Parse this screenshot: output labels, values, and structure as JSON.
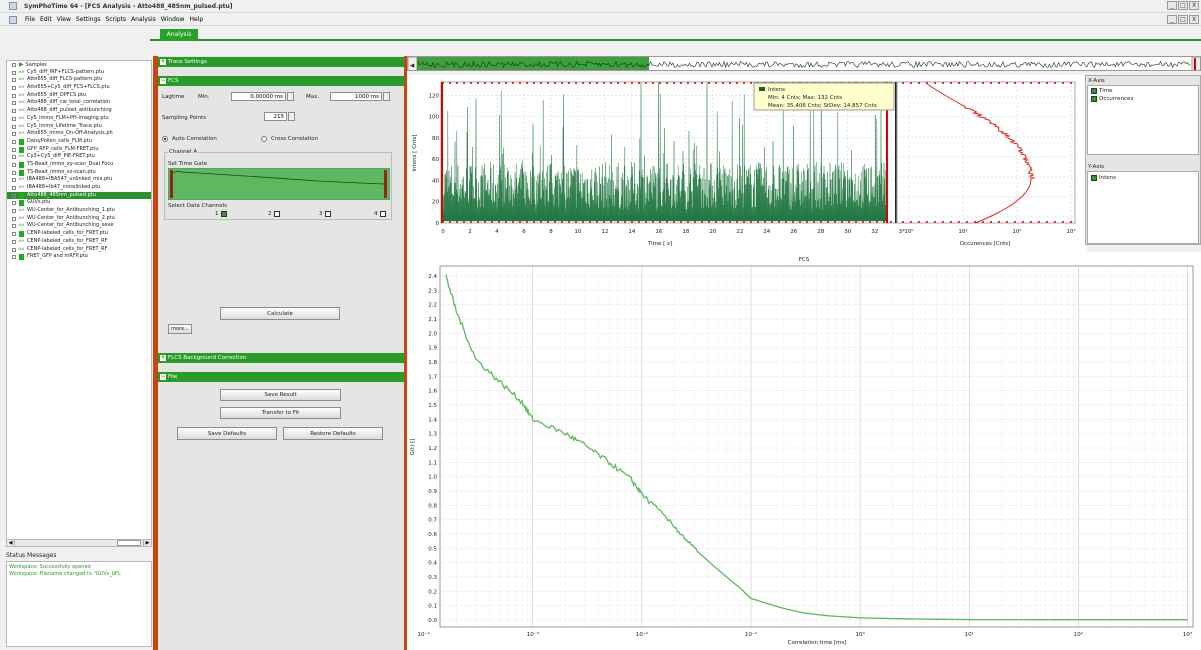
{
  "window": {
    "title": "SymPhoTime 64 - [FCS Analysis - Atto488_485nm_pulsed.ptu]",
    "buttons": [
      "_",
      "□",
      "X"
    ]
  },
  "menu": [
    "File",
    "Edit",
    "View",
    "Settings",
    "Scripts",
    "Analysis",
    "Window",
    "Help"
  ],
  "tab": "Analysis",
  "tree": {
    "root": "Samples",
    "items": [
      {
        "label": "Cy5_diff_IRF+FLCS-pattern.ptu",
        "kind": "chart"
      },
      {
        "label": "Atto655_diff_FLCS-pattern.ptu",
        "kind": "chart"
      },
      {
        "label": "Atto655+Cy5_diff_FCS+FLCS.ptu",
        "kind": "chart"
      },
      {
        "label": "Atto655_diff_DPFCS.ptu",
        "kind": "chart"
      },
      {
        "label": "Atto488_diff_cw_total_correlation",
        "kind": "chart"
      },
      {
        "label": "Atto488_diff_pulsed_antibunching",
        "kind": "chart"
      },
      {
        "label": "Cy5_immo_FLM+PH-imaging.ptu",
        "kind": "chart"
      },
      {
        "label": "Cy5_immo_Lifetime_Trace.ptu",
        "kind": "chart"
      },
      {
        "label": "Atto655_immo_On-Off-Analysis.ph",
        "kind": "chart"
      },
      {
        "label": "DaisyPollen_cells_FLM.ptu",
        "kind": "box"
      },
      {
        "label": "GFP_RFP_cells_FLM-FRET.ptu",
        "kind": "box"
      },
      {
        "label": "Cy3+Cy5_diff_PIE-FRET.ptu",
        "kind": "chart"
      },
      {
        "label": "TS-Bead_immo_xy-scan_Dual Focu",
        "kind": "box"
      },
      {
        "label": "TS-Bead_immo_xz-scan.ptu",
        "kind": "box"
      },
      {
        "label": "IBA488+IBA547_unlinked_mix.ptu",
        "kind": "chart"
      },
      {
        "label": "IBA488+Ib47_crosslinked.ptu",
        "kind": "chart"
      },
      {
        "label": "Atto488_485nm_pulsed.ptu",
        "kind": "box",
        "selected": true
      },
      {
        "label": "GUVs.ptu",
        "kind": "box"
      },
      {
        "label": "WU-Center_for_Antibunching_1.ptu",
        "kind": "chart"
      },
      {
        "label": "WU-Center_for_Antibunching_2.ptu",
        "kind": "chart"
      },
      {
        "label": "WU-Center_for_Antibunching_seve",
        "kind": "chart"
      },
      {
        "label": "CENP-labeled_cells_for_FRET.ptu",
        "kind": "box"
      },
      {
        "label": "CENP-labeled_cells_for_FRET_RF",
        "kind": "chart"
      },
      {
        "label": "CENP-labeled_cells_for_FRET_RF",
        "kind": "chart"
      },
      {
        "label": "FRET_GFP and mRFP.ptu",
        "kind": "box"
      }
    ]
  },
  "status": {
    "title": "Status Messages",
    "lines": [
      "Workspace: Successfully opened",
      "Workspace: Filename changed to \"GUVs_bFL"
    ]
  },
  "panel": {
    "trace_settings": "Trace Settings",
    "fcs": "FCS",
    "lagtime_label": "Lagtime",
    "min_label": "Min.",
    "min_value": "0,00000 ms",
    "max_label": "Max.",
    "max_value": "1000 ms",
    "sampling_label": "Sampling Points",
    "sampling_value": "215",
    "auto_corr": "Auto Correlation",
    "cross_corr": "Cross Correlation",
    "channel": "Channel A",
    "time_gate": "Set Time Gate",
    "select_channels": "Select Data Channels",
    "ch_labels": [
      "1",
      "2",
      "3",
      "4"
    ],
    "calculate": "Calculate",
    "more": "more...",
    "flcs_bg": "FLCS Background Correction",
    "file": "File",
    "save_result": "Save Result",
    "transfer": "Transfer to Fit",
    "save_defaults": "Save Defaults",
    "restore_defaults": "Restore Defaults"
  },
  "axes_panel": {
    "x_title": "X-Axis",
    "x_items": [
      "Time",
      "Occurrences"
    ],
    "y_title": "Y-Axis",
    "y_items": [
      "Intens"
    ]
  },
  "tooltip": {
    "title": "Intens",
    "line1": "Min: 4 Cnts; Max: 132 Cnts",
    "line2": "Mean: 35,406 Cnts; StDev: 14,857 Cnts"
  },
  "chart_data": [
    {
      "type": "area",
      "xlabel": "Time [ s]",
      "ylabel": "Intens [ Cnts]",
      "xticks": [
        "0",
        "2",
        "4",
        "6",
        "8",
        "10",
        "12",
        "14",
        "16",
        "18",
        "20",
        "22",
        "24",
        "26",
        "28",
        "30",
        "32",
        "3*"
      ],
      "yticks": [
        "0",
        "20",
        "40",
        "60",
        "80",
        "100",
        "120"
      ],
      "xlim": [
        0,
        33.5
      ],
      "ylim": [
        0,
        132
      ],
      "series": [
        {
          "values_summary": {
            "min": 4,
            "max": 132,
            "mean": 35.406,
            "stdev": 14.857
          }
        }
      ],
      "color": "#0d6b2e"
    },
    {
      "type": "line",
      "xlabel": "Occurences [Cnts]",
      "xticks": [
        "10⁰",
        "10¹",
        "10²",
        "10³"
      ],
      "color": "#e02020"
    },
    {
      "type": "line",
      "title": "FCS",
      "xlabel": "Correlation time [ms]",
      "ylabel": "G(t) []",
      "xticks": [
        "10⁻⁵",
        "10⁻⁴",
        "10⁻³",
        "10⁻²",
        "10⁻¹",
        "10⁰",
        "10¹",
        "10²",
        "10³"
      ],
      "yticks": [
        "0.0",
        "0.1",
        "0.2",
        "0.3",
        "0.4",
        "0.5",
        "0.6",
        "0.7",
        "0.8",
        "0.9",
        "1.0",
        "1.1",
        "1.2",
        "1.3",
        "1.4",
        "1.5",
        "1.6",
        "1.7",
        "1.8",
        "1.9",
        "2.0",
        "2.1",
        "2.2",
        "2.3",
        "2.4"
      ],
      "ylim": [
        0,
        2.45
      ],
      "x": [
        0.00016,
        0.0002,
        0.0003,
        0.0005,
        0.0008,
        0.001,
        0.002,
        0.003,
        0.005,
        0.008,
        0.01,
        0.02,
        0.03,
        0.05,
        0.08,
        0.1,
        0.2,
        0.3,
        0.5,
        1,
        2,
        5,
        10,
        100,
        1000
      ],
      "values": [
        2.4,
        2.15,
        1.82,
        1.66,
        1.52,
        1.4,
        1.3,
        1.22,
        1.1,
        0.98,
        0.88,
        0.65,
        0.5,
        0.35,
        0.22,
        0.15,
        0.08,
        0.05,
        0.03,
        0.015,
        0.01,
        0.005,
        0.003,
        0.002,
        0.002
      ],
      "color": "#5cb85c"
    }
  ]
}
